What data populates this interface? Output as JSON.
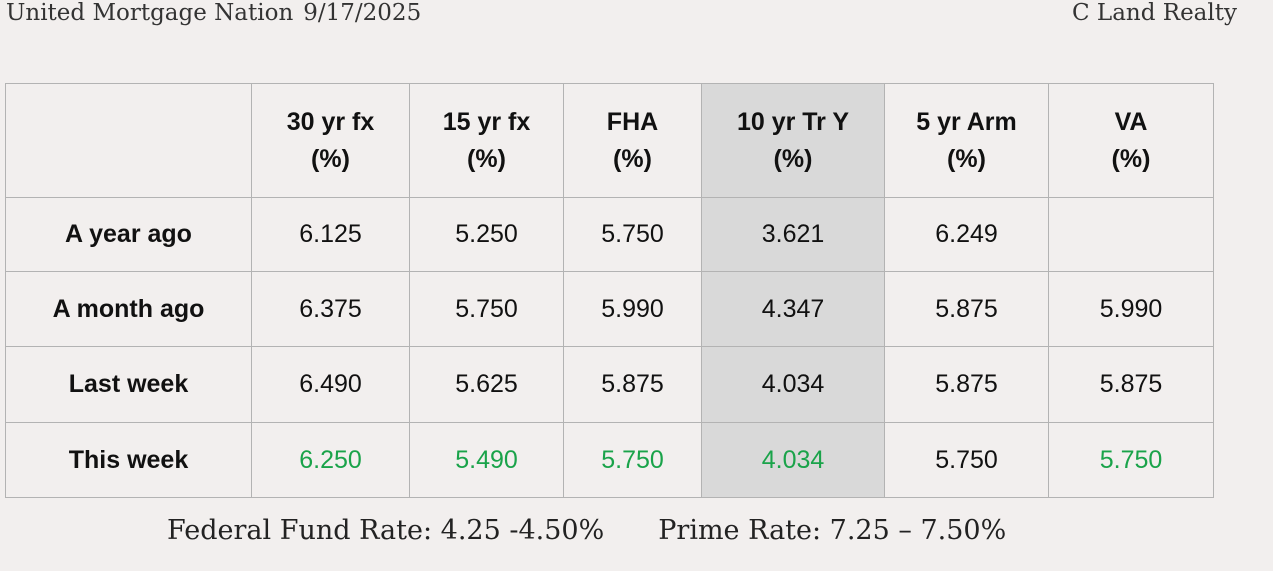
{
  "header": {
    "publisher": "United Mortgage Nation",
    "date": "9/17/2025",
    "company": "C Land Realty"
  },
  "table": {
    "columns": [
      {
        "line1": "30 yr fx",
        "line2": "(%)"
      },
      {
        "line1": "15 yr fx",
        "line2": "(%)"
      },
      {
        "line1": "FHA",
        "line2": "(%)"
      },
      {
        "line1": "10 yr Tr Y",
        "line2": "(%)"
      },
      {
        "line1": "5 yr Arm",
        "line2": "(%)"
      },
      {
        "line1": "VA",
        "line2": "(%)"
      }
    ],
    "highlighted_column": "10 yr Tr Y",
    "highlight_color": "#d9d9d9",
    "improved_value_color": "#1aa34a",
    "rows": [
      {
        "label": "A year ago",
        "values": [
          "6.125",
          "5.250",
          "5.750",
          "3.621",
          "6.249",
          ""
        ]
      },
      {
        "label": "A month ago",
        "values": [
          "6.375",
          "5.750",
          "5.990",
          "4.347",
          "5.875",
          "5.990"
        ]
      },
      {
        "label": "Last week",
        "values": [
          "6.490",
          "5.625",
          "5.875",
          "4.034",
          "5.875",
          "5.875"
        ]
      },
      {
        "label": "This week",
        "values": [
          "6.250",
          "5.490",
          "5.750",
          "4.034",
          "5.750",
          "5.750"
        ],
        "green": [
          true,
          true,
          true,
          true,
          false,
          true
        ]
      }
    ]
  },
  "footer": {
    "federal_fund_rate": "Federal Fund Rate: 4.25 -4.50%",
    "prime_rate": "Prime Rate: 7.25 – 7.50%"
  }
}
